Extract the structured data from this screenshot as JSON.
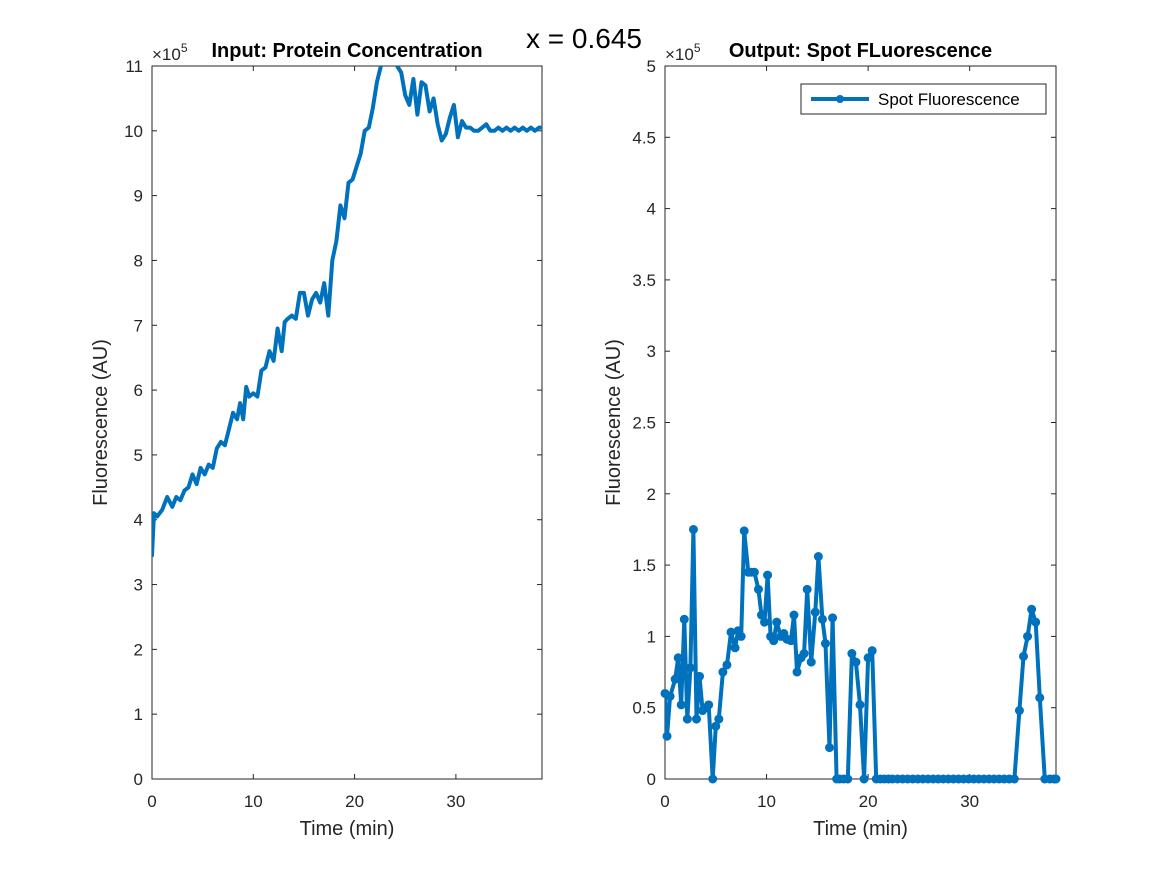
{
  "figure": {
    "suptitle": "x = 0.645",
    "line_color": "#0072BD"
  },
  "chart_data": [
    {
      "type": "line",
      "title": "Input: Protein Concentration",
      "xlabel": "Time (min)",
      "ylabel": "Fluorescence (AU)",
      "xlim": [
        0,
        38.5
      ],
      "ylim": [
        0,
        11
      ],
      "xticks": [
        0,
        10,
        20,
        30
      ],
      "xtick_labels": [
        "0",
        "10",
        "20",
        "30"
      ],
      "yticks": [
        0,
        1,
        2,
        3,
        4,
        5,
        6,
        7,
        8,
        9,
        10,
        11
      ],
      "ytick_labels": [
        "0",
        "1",
        "2",
        "3",
        "4",
        "5",
        "6",
        "7",
        "8",
        "9",
        "10",
        "11"
      ],
      "exponent_label": "×10",
      "exponent_power": "5",
      "markers": false,
      "series": [
        {
          "x": [
            0,
            0.2,
            0.5,
            1.0,
            1.5,
            2.0,
            2.4,
            2.8,
            3.2,
            3.6,
            4.0,
            4.4,
            4.8,
            5.2,
            5.6,
            6.0,
            6.4,
            6.8,
            7.2,
            7.6,
            8.0,
            8.4,
            8.7,
            9.0,
            9.3,
            9.6,
            10.0,
            10.4,
            10.8,
            11.2,
            11.6,
            12.0,
            12.4,
            12.8,
            13.1,
            13.4,
            13.8,
            14.2,
            14.6,
            15.0,
            15.4,
            15.8,
            16.2,
            16.6,
            17.0,
            17.4,
            17.8,
            18.2,
            18.6,
            19.0,
            19.4,
            19.8,
            20.2,
            20.6,
            21.0,
            21.4,
            21.8,
            22.2,
            22.6,
            23.0,
            23.4,
            23.8,
            24.2,
            24.6,
            25.0,
            25.4,
            25.8,
            26.2,
            26.6,
            27.0,
            27.4,
            27.8,
            28.2,
            28.6,
            29.0,
            29.4,
            29.8,
            30.2,
            30.6,
            31.0,
            31.4,
            31.8,
            32.2,
            32.6,
            33.0,
            33.4,
            33.8,
            34.2,
            34.6,
            35.0,
            35.4,
            35.8,
            36.2,
            36.6,
            37.0,
            37.4,
            37.8,
            38.2,
            38.5
          ],
          "y": [
            3.45,
            4.1,
            4.05,
            4.15,
            4.35,
            4.2,
            4.35,
            4.3,
            4.45,
            4.5,
            4.7,
            4.55,
            4.8,
            4.7,
            4.85,
            4.8,
            5.1,
            5.2,
            5.15,
            5.4,
            5.65,
            5.55,
            5.8,
            5.55,
            6.05,
            5.9,
            5.95,
            5.9,
            6.3,
            6.35,
            6.6,
            6.45,
            6.95,
            6.6,
            7.05,
            7.1,
            7.15,
            7.1,
            7.5,
            7.5,
            7.15,
            7.4,
            7.5,
            7.35,
            7.65,
            7.15,
            8.0,
            8.3,
            8.85,
            8.65,
            9.2,
            9.25,
            9.45,
            9.65,
            10.0,
            10.05,
            10.35,
            10.75,
            11.0,
            11.35,
            11.8,
            11.4,
            11.0,
            10.9,
            10.55,
            10.4,
            10.8,
            10.25,
            10.75,
            10.7,
            10.3,
            10.5,
            10.1,
            9.85,
            9.95,
            10.2,
            10.4,
            9.9,
            10.15,
            10.05,
            10.05,
            10.0,
            10.0,
            10.05,
            10.1,
            10.0,
            10.0,
            10.05,
            10.0,
            10.05,
            10.0,
            10.05,
            10.0,
            10.05,
            10.0,
            10.05,
            10.0,
            10.05,
            10.05
          ]
        }
      ]
    },
    {
      "type": "line",
      "title": "Output: Spot FLuorescence",
      "xlabel": "Time (min)",
      "ylabel": "Fluorescence (AU)",
      "xlim": [
        0,
        38.5
      ],
      "ylim": [
        0,
        5
      ],
      "xticks": [
        0,
        10,
        20,
        30
      ],
      "xtick_labels": [
        "0",
        "10",
        "20",
        "30"
      ],
      "yticks": [
        0,
        0.5,
        1,
        1.5,
        2,
        2.5,
        3,
        3.5,
        4,
        4.5,
        5
      ],
      "ytick_labels": [
        "0",
        "0.5",
        "1",
        "1.5",
        "2",
        "2.5",
        "3",
        "3.5",
        "4",
        "4.5",
        "5"
      ],
      "exponent_label": "×10",
      "exponent_power": "5",
      "markers": true,
      "legend": {
        "position": "top-right",
        "entries": [
          "Spot Fluorescence"
        ]
      },
      "series": [
        {
          "name": "Spot Fluorescence",
          "x": [
            0,
            0.2,
            0.5,
            1.0,
            1.3,
            1.6,
            1.9,
            2.2,
            2.5,
            2.8,
            3.1,
            3.4,
            3.7,
            4.0,
            4.3,
            4.7,
            5.0,
            5.3,
            5.7,
            6.1,
            6.5,
            6.9,
            7.2,
            7.5,
            7.8,
            8.2,
            8.5,
            8.8,
            9.2,
            9.5,
            9.8,
            10.1,
            10.4,
            10.7,
            11.0,
            11.4,
            11.7,
            12.0,
            12.4,
            12.7,
            13.0,
            13.4,
            13.7,
            14.0,
            14.4,
            14.8,
            15.1,
            15.5,
            15.8,
            16.2,
            16.5,
            16.9,
            17.2,
            17.6,
            18.0,
            18.4,
            18.8,
            19.2,
            19.6,
            20.0,
            20.4,
            20.8,
            21.2,
            21.6,
            22.0,
            22.4,
            22.9,
            23.4,
            23.9,
            24.4,
            24.9,
            25.4,
            25.9,
            26.4,
            26.9,
            27.4,
            27.9,
            28.4,
            28.9,
            29.4,
            29.9,
            30.4,
            30.9,
            31.4,
            31.9,
            32.4,
            32.9,
            33.4,
            33.9,
            34.4,
            34.9,
            35.3,
            35.7,
            36.1,
            36.5,
            36.9,
            37.4,
            37.9,
            38.3,
            38.5
          ],
          "y": [
            0.6,
            0.3,
            0.58,
            0.7,
            0.85,
            0.52,
            1.12,
            0.42,
            0.78,
            1.75,
            0.42,
            0.72,
            0.48,
            0.5,
            0.52,
            0.0,
            0.37,
            0.42,
            0.75,
            0.8,
            1.03,
            0.92,
            1.04,
            1.0,
            1.74,
            1.45,
            1.45,
            1.45,
            1.33,
            1.15,
            1.1,
            1.43,
            1.0,
            0.97,
            1.1,
            1.0,
            1.02,
            0.98,
            0.97,
            1.15,
            0.75,
            0.85,
            0.88,
            1.33,
            0.82,
            1.17,
            1.56,
            1.12,
            0.95,
            0.22,
            1.13,
            0.0,
            0.0,
            0.0,
            0.0,
            0.88,
            0.82,
            0.52,
            0.0,
            0.85,
            0.9,
            0.0,
            0.0,
            0.0,
            0.0,
            0.0,
            0.0,
            0.0,
            0.0,
            0.0,
            0.0,
            0.0,
            0.0,
            0.0,
            0.0,
            0.0,
            0.0,
            0.0,
            0.0,
            0.0,
            0.0,
            0.0,
            0.0,
            0.0,
            0.0,
            0.0,
            0.0,
            0.0,
            0.0,
            0.0,
            0.48,
            0.86,
            1.0,
            1.19,
            1.1,
            0.57,
            0.0,
            0.0,
            0.0,
            0.0
          ]
        }
      ]
    }
  ]
}
